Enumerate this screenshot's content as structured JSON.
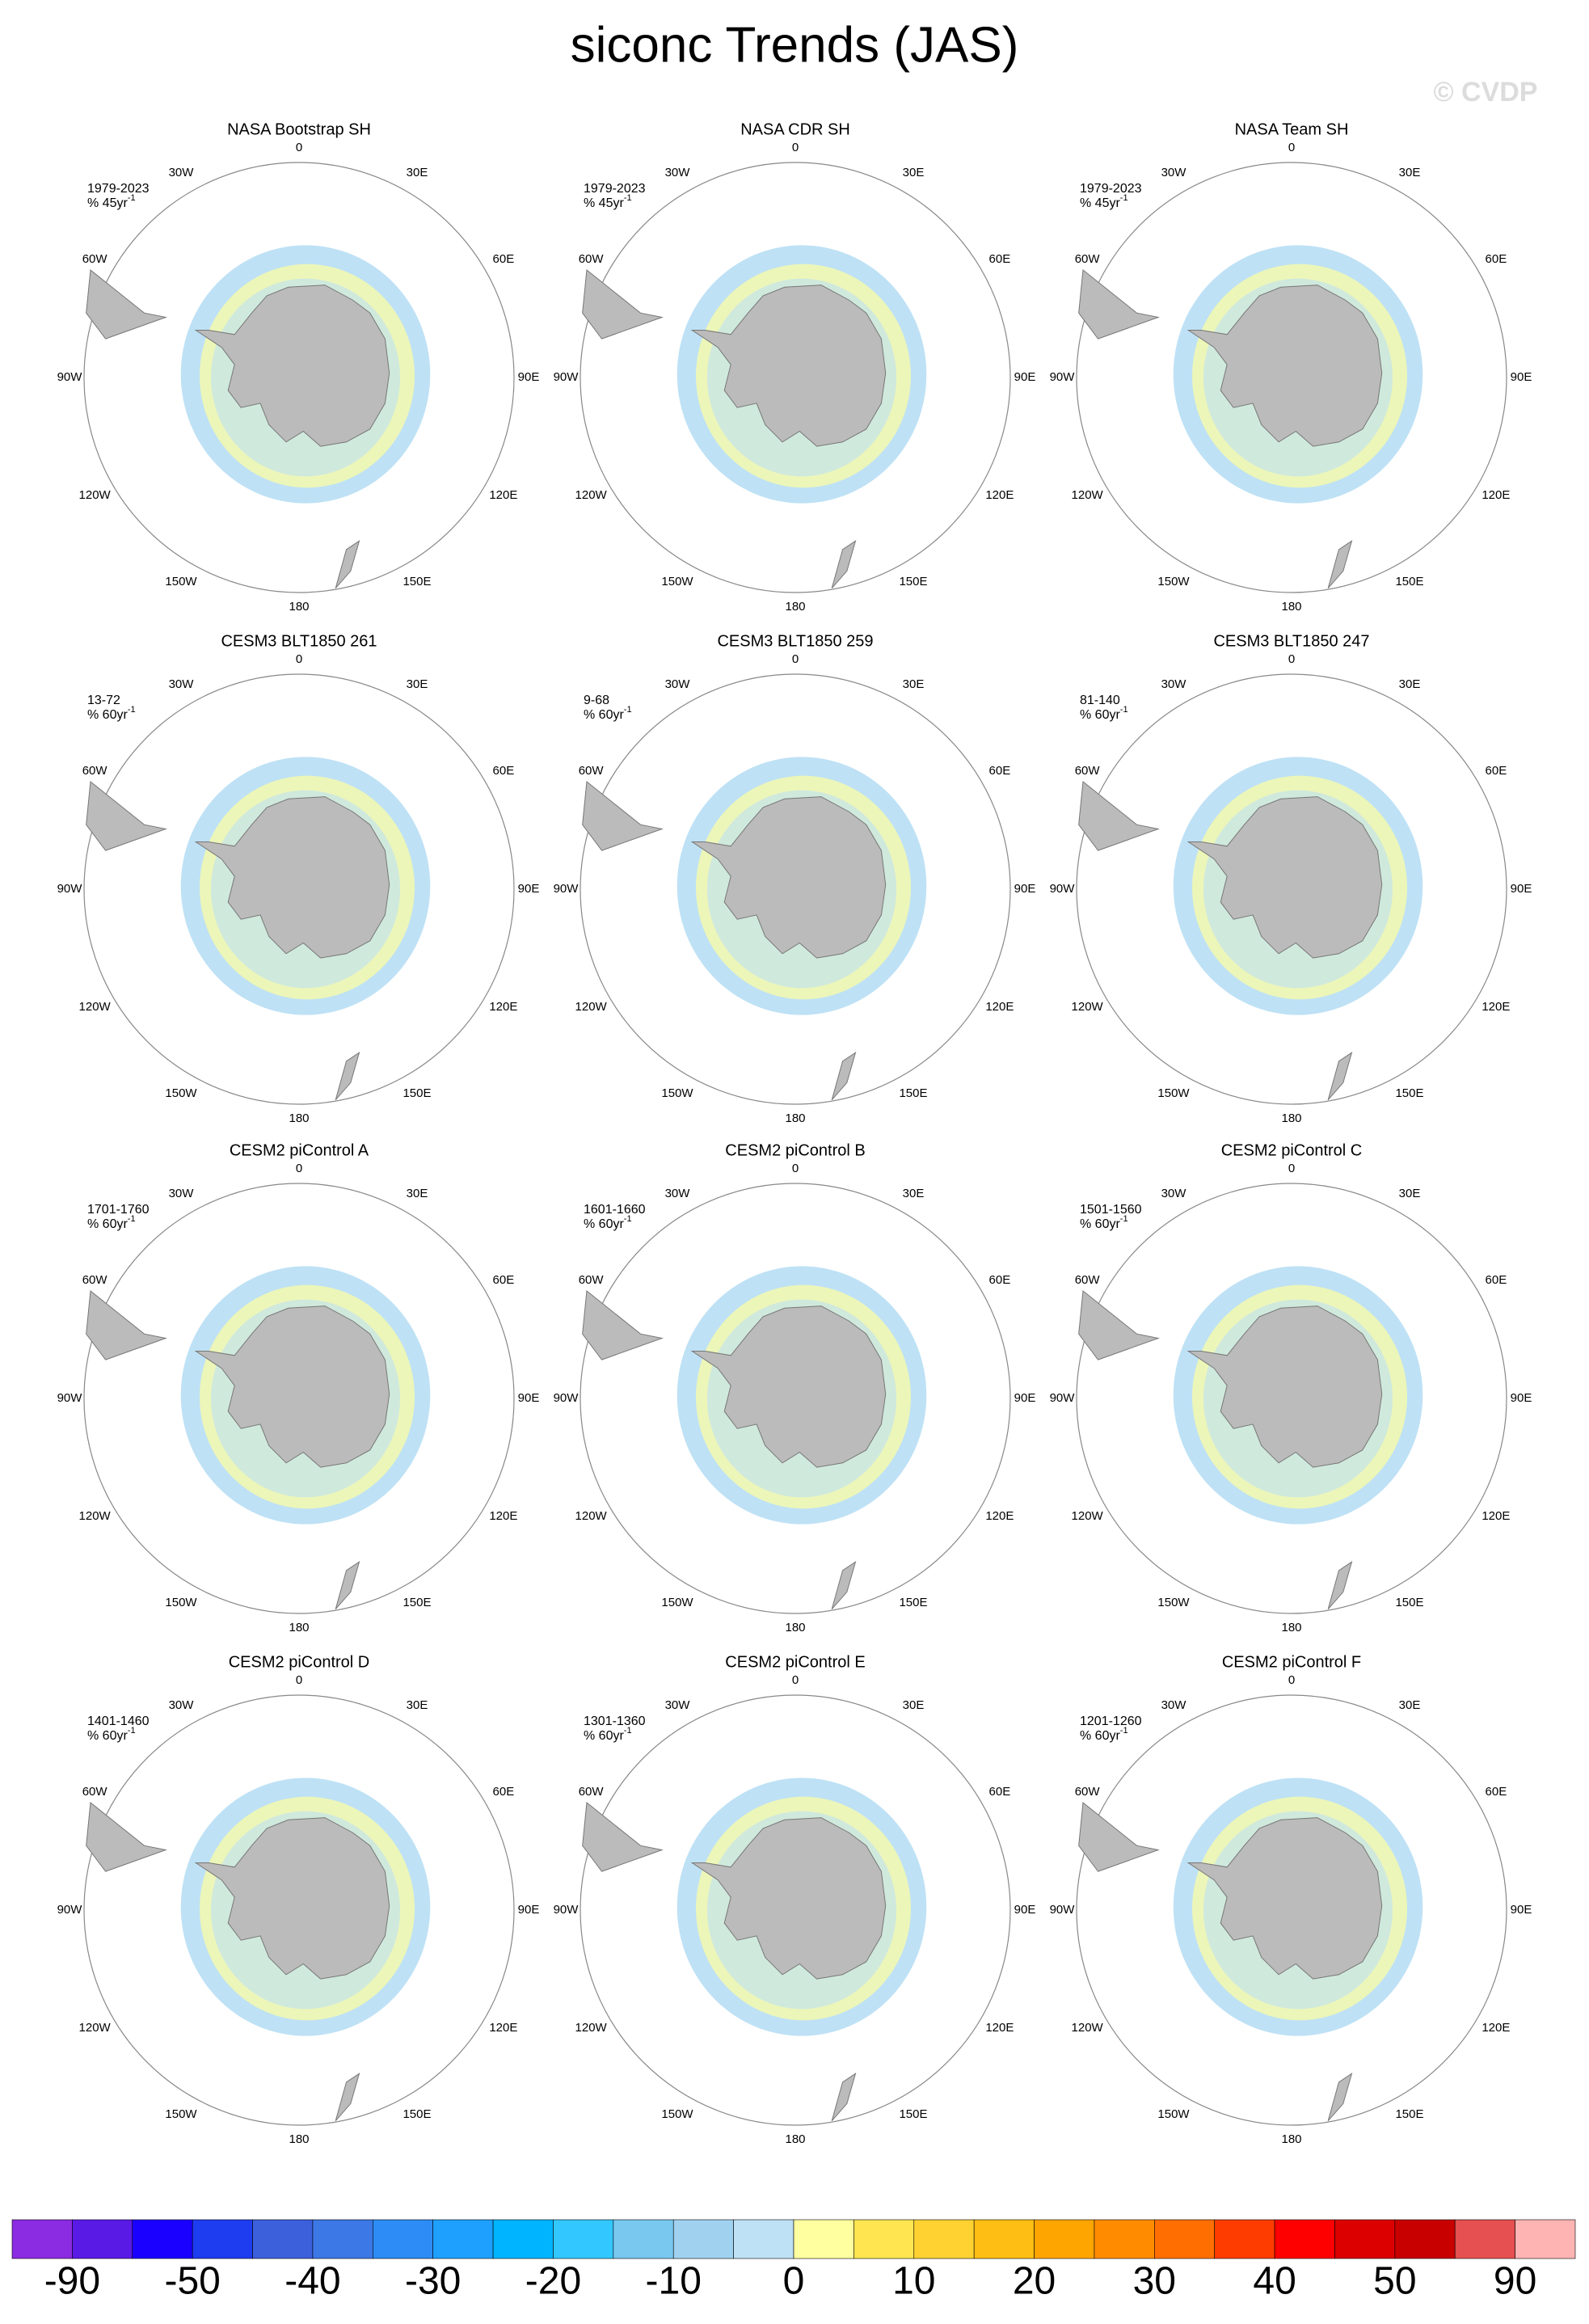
{
  "title": "siconc Trends (JAS)",
  "watermark": "© CVDP",
  "lon_labels": [
    "0",
    "30E",
    "60E",
    "90E",
    "120E",
    "150E",
    "180",
    "150W",
    "120W",
    "90W",
    "60W",
    "30W"
  ],
  "panels": [
    {
      "title": "NASA Bootstrap SH",
      "period": "1979-2023",
      "units": "% 45yr",
      "units_sup": "-1"
    },
    {
      "title": "NASA CDR SH",
      "period": "1979-2023",
      "units": "% 45yr",
      "units_sup": "-1"
    },
    {
      "title": "NASA Team SH",
      "period": "1979-2023",
      "units": "% 45yr",
      "units_sup": "-1"
    },
    {
      "title": "CESM3 BLT1850 261",
      "period": "13-72",
      "units": "% 60yr",
      "units_sup": "-1"
    },
    {
      "title": "CESM3 BLT1850 259",
      "period": "9-68",
      "units": "% 60yr",
      "units_sup": "-1"
    },
    {
      "title": "CESM3 BLT1850 247",
      "period": "81-140",
      "units": "% 60yr",
      "units_sup": "-1"
    },
    {
      "title": "CESM2 piControl A",
      "period": "1701-1760",
      "units": "% 60yr",
      "units_sup": "-1"
    },
    {
      "title": "CESM2 piControl B",
      "period": "1601-1660",
      "units": "% 60yr",
      "units_sup": "-1"
    },
    {
      "title": "CESM2 piControl C",
      "period": "1501-1560",
      "units": "% 60yr",
      "units_sup": "-1"
    },
    {
      "title": "CESM2 piControl D",
      "period": "1401-1460",
      "units": "% 60yr",
      "units_sup": "-1"
    },
    {
      "title": "CESM2 piControl E",
      "period": "1301-1360",
      "units": "% 60yr",
      "units_sup": "-1"
    },
    {
      "title": "CESM2 piControl F",
      "period": "1201-1260",
      "units": "% 60yr",
      "units_sup": "-1"
    }
  ],
  "colorbar": {
    "colors": [
      "#8b2be2",
      "#5a1ae6",
      "#1a00ff",
      "#1e3cf0",
      "#3c5fdc",
      "#3c78e6",
      "#2d8cf5",
      "#1ea0ff",
      "#00b4ff",
      "#32c8ff",
      "#78c8f0",
      "#a0d2f0",
      "#bee1f5",
      "#ffffa0",
      "#ffe650",
      "#ffd232",
      "#ffbe14",
      "#ffa500",
      "#ff8c00",
      "#ff6e00",
      "#ff3c00",
      "#ff0000",
      "#dc0000",
      "#c80000",
      "#e65050",
      "#ffb4b4"
    ],
    "labels": [
      -90,
      -50,
      -40,
      -30,
      -20,
      -10,
      0,
      10,
      20,
      30,
      40,
      50,
      90
    ]
  }
}
